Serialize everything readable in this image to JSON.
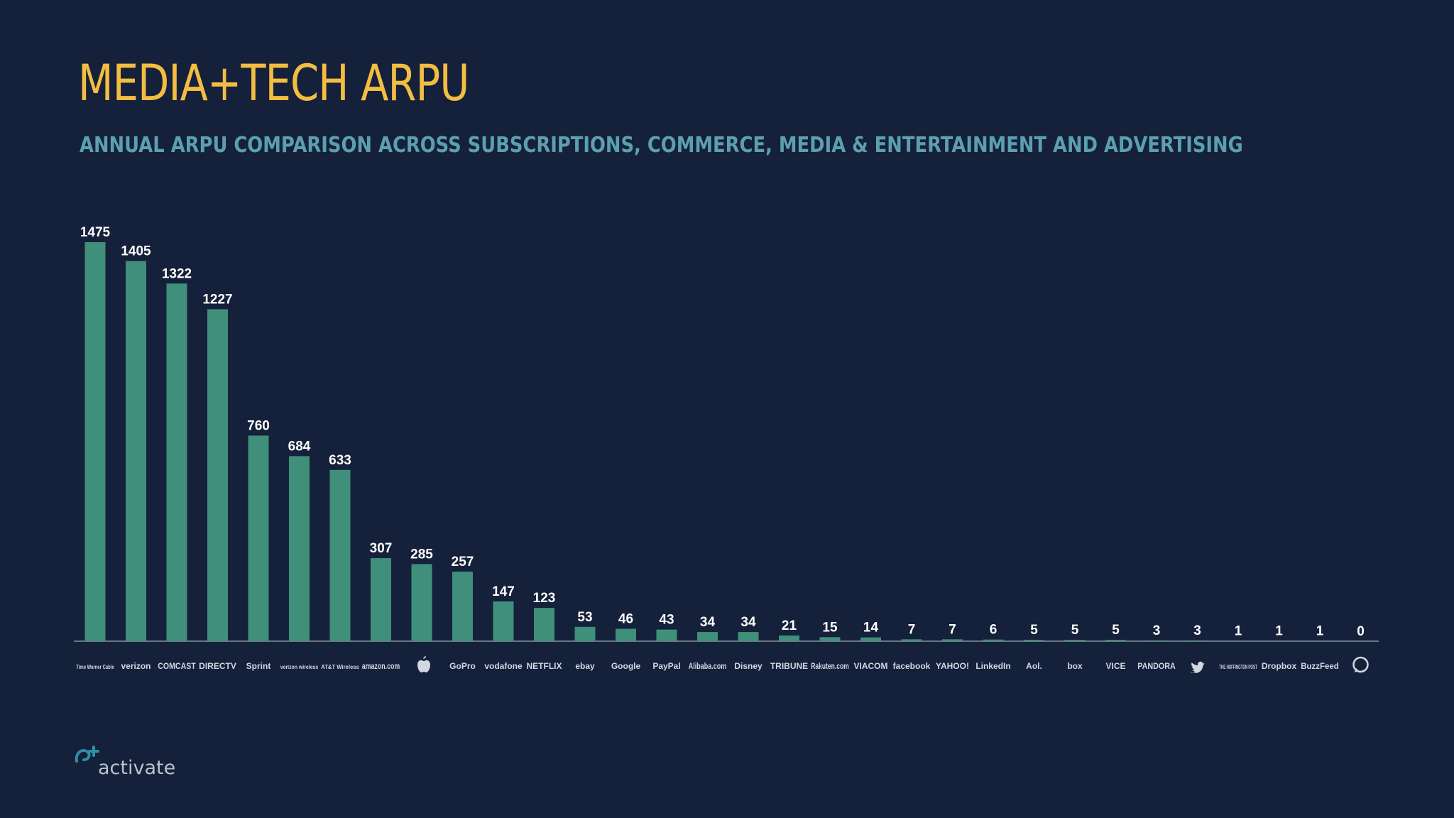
{
  "header": {
    "title": "MEDIA+TECH ARPU",
    "subtitle": "ANNUAL ARPU COMPARISON ACROSS SUBSCRIPTIONS, COMMERCE, MEDIA & ENTERTAINMENT AND ADVERTISING"
  },
  "brand": {
    "name": "activate"
  },
  "colors": {
    "background": "#15203a",
    "title": "#f3bd41",
    "subtitle": "#5b9fb0",
    "bar": "#3f8f7b",
    "value_label": "#ffffff",
    "axis": "#6b7688",
    "logo_text": "#d3d8e0"
  },
  "chart_data": {
    "type": "bar",
    "title": "MEDIA+TECH ARPU",
    "subtitle": "ANNUAL ARPU COMPARISON ACROSS SUBSCRIPTIONS, COMMERCE, MEDIA & ENTERTAINMENT AND ADVERTISING",
    "xlabel": "",
    "ylabel": "",
    "ylim": [
      0,
      1475
    ],
    "grid": false,
    "legend": "none",
    "categories": [
      "Time Warner Cable",
      "verizon",
      "COMCAST",
      "DIRECTV",
      "Sprint",
      "verizon wireless",
      "AT&T Wireless",
      "amazon.com",
      "Apple",
      "GoPro",
      "vodafone",
      "NETFLIX",
      "ebay",
      "Google",
      "PayPal",
      "Alibaba.com",
      "Disney",
      "TRIBUNE",
      "Rakuten.com",
      "VIACOM",
      "facebook",
      "YAHOO!",
      "LinkedIn",
      "Aol.",
      "box",
      "VICE",
      "PANDORA",
      "Twitter",
      "THE HUFFINGTON POST",
      "Dropbox",
      "BuzzFeed",
      "WhatsApp"
    ],
    "values": [
      1475,
      1405,
      1322,
      1227,
      760,
      684,
      633,
      307,
      285,
      257,
      147,
      123,
      53,
      46,
      43,
      34,
      34,
      21,
      15,
      14,
      7,
      7,
      6,
      5,
      5,
      5,
      3,
      3,
      1,
      1,
      1,
      0
    ],
    "logo_icons": [
      "time-warner-cable-logo",
      "verizon-logo",
      "comcast-logo",
      "directv-logo",
      "sprint-logo",
      "verizon-wireless-logo",
      "att-wireless-logo",
      "amazon-logo",
      "apple-logo",
      "gopro-logo",
      "vodafone-logo",
      "netflix-logo",
      "ebay-logo",
      "google-logo",
      "paypal-logo",
      "alibaba-logo",
      "disney-logo",
      "tribune-logo",
      "rakuten-logo",
      "viacom-logo",
      "facebook-logo",
      "yahoo-logo",
      "linkedin-logo",
      "aol-logo",
      "box-logo",
      "vice-logo",
      "pandora-logo",
      "twitter-bird-icon",
      "huffington-post-logo",
      "dropbox-logo",
      "buzzfeed-logo",
      "whatsapp-icon"
    ]
  }
}
